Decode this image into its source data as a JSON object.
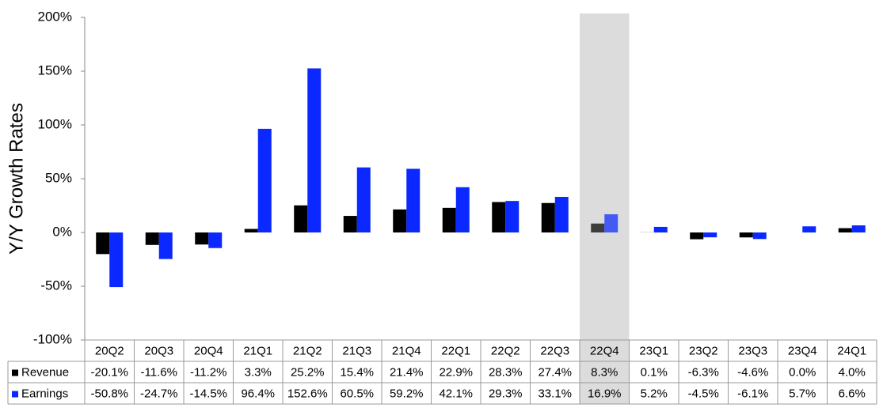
{
  "chart_data": {
    "type": "bar",
    "y_label": "Y/Y Growth Rates",
    "categories": [
      "20Q2",
      "20Q3",
      "20Q4",
      "21Q1",
      "21Q2",
      "21Q3",
      "21Q4",
      "22Q1",
      "22Q2",
      "22Q3",
      "22Q4",
      "23Q1",
      "23Q2",
      "23Q3",
      "23Q4",
      "24Q1"
    ],
    "series": [
      {
        "name": "Revenue",
        "color": "#000000",
        "values": [
          -20.1,
          -11.6,
          -11.2,
          3.3,
          25.2,
          15.4,
          21.4,
          22.9,
          28.3,
          27.4,
          8.3,
          0.1,
          -6.3,
          -4.6,
          0.0,
          4.0
        ],
        "value_labels": [
          "-20.1%",
          "-11.6%",
          "-11.2%",
          "3.3%",
          "25.2%",
          "15.4%",
          "21.4%",
          "22.9%",
          "28.3%",
          "27.4%",
          "8.3%",
          "0.1%",
          "-6.3%",
          "-4.6%",
          "0.0%",
          "4.0%"
        ]
      },
      {
        "name": "Earnings",
        "color": "#0a28ff",
        "values": [
          -50.8,
          -24.7,
          -14.5,
          96.4,
          152.6,
          60.5,
          59.2,
          42.1,
          29.3,
          33.1,
          16.9,
          5.2,
          -4.5,
          -6.1,
          5.7,
          6.6
        ],
        "value_labels": [
          "-50.8%",
          "-24.7%",
          "-14.5%",
          "96.4%",
          "152.6%",
          "60.5%",
          "59.2%",
          "42.1%",
          "29.3%",
          "33.1%",
          "16.9%",
          "5.2%",
          "-4.5%",
          "-6.1%",
          "5.7%",
          "6.6%"
        ]
      }
    ],
    "ylim": [
      -100,
      200
    ],
    "yticks": [
      {
        "value": -100,
        "label": "-100%"
      },
      {
        "value": -50,
        "label": "-50%"
      },
      {
        "value": 0,
        "label": "0%"
      },
      {
        "value": 50,
        "label": "50%"
      },
      {
        "value": 100,
        "label": "100%"
      },
      {
        "value": 150,
        "label": "150%"
      },
      {
        "value": 200,
        "label": "200%"
      }
    ],
    "highlight_index": 10,
    "grid": false
  }
}
